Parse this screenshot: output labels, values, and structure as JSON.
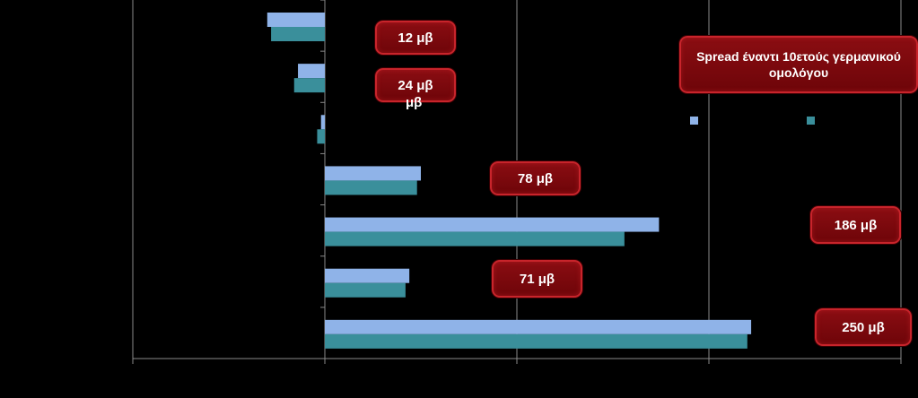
{
  "chart_data": {
    "type": "bar",
    "orientation": "horizontal",
    "grid": true,
    "legend": "top-right",
    "series": [
      {
        "color": "#8fb3e8",
        "values": [
          -15,
          -7,
          -1,
          25,
          87,
          22,
          111
        ]
      },
      {
        "color": "#3a8f9b",
        "values": [
          -14,
          -8,
          -2,
          24,
          78,
          21,
          110
        ]
      }
    ],
    "xlim": [
      -50,
      150
    ],
    "annotations": {
      "title_box": "Spread έναντι 10ετούς γερμανικού ομολόγου",
      "labels": [
        "12 μβ",
        "24 μβ",
        "78 μβ",
        "186 μβ",
        "71 μβ",
        "250 μβ"
      ],
      "label_overflow": "μβ"
    }
  }
}
